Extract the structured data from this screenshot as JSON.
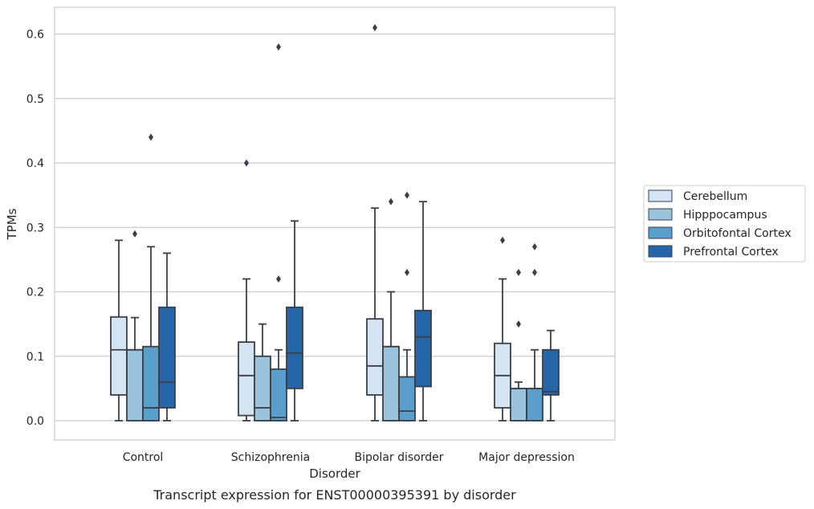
{
  "chart_data": {
    "type": "box",
    "title": "",
    "caption": "Transcript expression for ENST00000395391 by disorder",
    "xlabel": "Disorder",
    "ylabel": "TPMs",
    "ylim": [
      -0.03,
      0.64
    ],
    "yticks": [
      0.0,
      0.1,
      0.2,
      0.3,
      0.4,
      0.5,
      0.6
    ],
    "ytick_labels": [
      "0.0",
      "0.1",
      "0.2",
      "0.3",
      "0.4",
      "0.5",
      "0.6"
    ],
    "grid": true,
    "legend_position": "right",
    "categories": [
      "Control",
      "Schizophrenia",
      "Bipolar disorder",
      "Major depression"
    ],
    "series": [
      {
        "name": "Cerebellum",
        "color": "#d4e4f2",
        "boxes": [
          {
            "whisker_low": 0.0,
            "q1": 0.04,
            "median": 0.11,
            "q3": 0.161,
            "whisker_high": 0.28,
            "outliers": []
          },
          {
            "whisker_low": 0.0,
            "q1": 0.008,
            "median": 0.07,
            "q3": 0.122,
            "whisker_high": 0.22,
            "outliers": [
              0.4
            ]
          },
          {
            "whisker_low": 0.0,
            "q1": 0.04,
            "median": 0.085,
            "q3": 0.158,
            "whisker_high": 0.33,
            "outliers": [
              0.61
            ]
          },
          {
            "whisker_low": 0.0,
            "q1": 0.02,
            "median": 0.07,
            "q3": 0.12,
            "whisker_high": 0.22,
            "outliers": [
              0.28
            ]
          }
        ]
      },
      {
        "name": "Hipppocampus",
        "color": "#9ac4de",
        "boxes": [
          {
            "whisker_low": 0.0,
            "q1": 0.0,
            "median": 0.11,
            "q3": 0.11,
            "whisker_high": 0.16,
            "outliers": [
              0.29
            ]
          },
          {
            "whisker_low": 0.0,
            "q1": 0.0,
            "median": 0.02,
            "q3": 0.1,
            "whisker_high": 0.15,
            "outliers": []
          },
          {
            "whisker_low": 0.0,
            "q1": 0.0,
            "median": 0.115,
            "q3": 0.115,
            "whisker_high": 0.2,
            "outliers": [
              0.34
            ]
          },
          {
            "whisker_low": 0.0,
            "q1": 0.0,
            "median": 0.05,
            "q3": 0.05,
            "whisker_high": 0.06,
            "outliers": [
              0.15,
              0.23
            ]
          }
        ]
      },
      {
        "name": "Orbitofontal Cortex",
        "color": "#5a9ecc",
        "boxes": [
          {
            "whisker_low": 0.0,
            "q1": 0.0,
            "median": 0.02,
            "q3": 0.115,
            "whisker_high": 0.27,
            "outliers": [
              0.44
            ]
          },
          {
            "whisker_low": 0.0,
            "q1": 0.0,
            "median": 0.005,
            "q3": 0.08,
            "whisker_high": 0.11,
            "outliers": [
              0.22,
              0.58
            ]
          },
          {
            "whisker_low": 0.0,
            "q1": 0.0,
            "median": 0.015,
            "q3": 0.068,
            "whisker_high": 0.11,
            "outliers": [
              0.23,
              0.35
            ]
          },
          {
            "whisker_low": 0.0,
            "q1": 0.0,
            "median": 0.05,
            "q3": 0.05,
            "whisker_high": 0.11,
            "outliers": [
              0.23,
              0.27
            ]
          }
        ]
      },
      {
        "name": "Prefrontal Cortex",
        "color": "#2666a8",
        "boxes": [
          {
            "whisker_low": 0.0,
            "q1": 0.02,
            "median": 0.06,
            "q3": 0.176,
            "whisker_high": 0.26,
            "outliers": []
          },
          {
            "whisker_low": 0.0,
            "q1": 0.05,
            "median": 0.105,
            "q3": 0.176,
            "whisker_high": 0.31,
            "outliers": []
          },
          {
            "whisker_low": 0.0,
            "q1": 0.053,
            "median": 0.13,
            "q3": 0.171,
            "whisker_high": 0.34,
            "outliers": []
          },
          {
            "whisker_low": 0.0,
            "q1": 0.04,
            "median": 0.045,
            "q3": 0.11,
            "whisker_high": 0.14,
            "outliers": []
          }
        ]
      }
    ]
  }
}
